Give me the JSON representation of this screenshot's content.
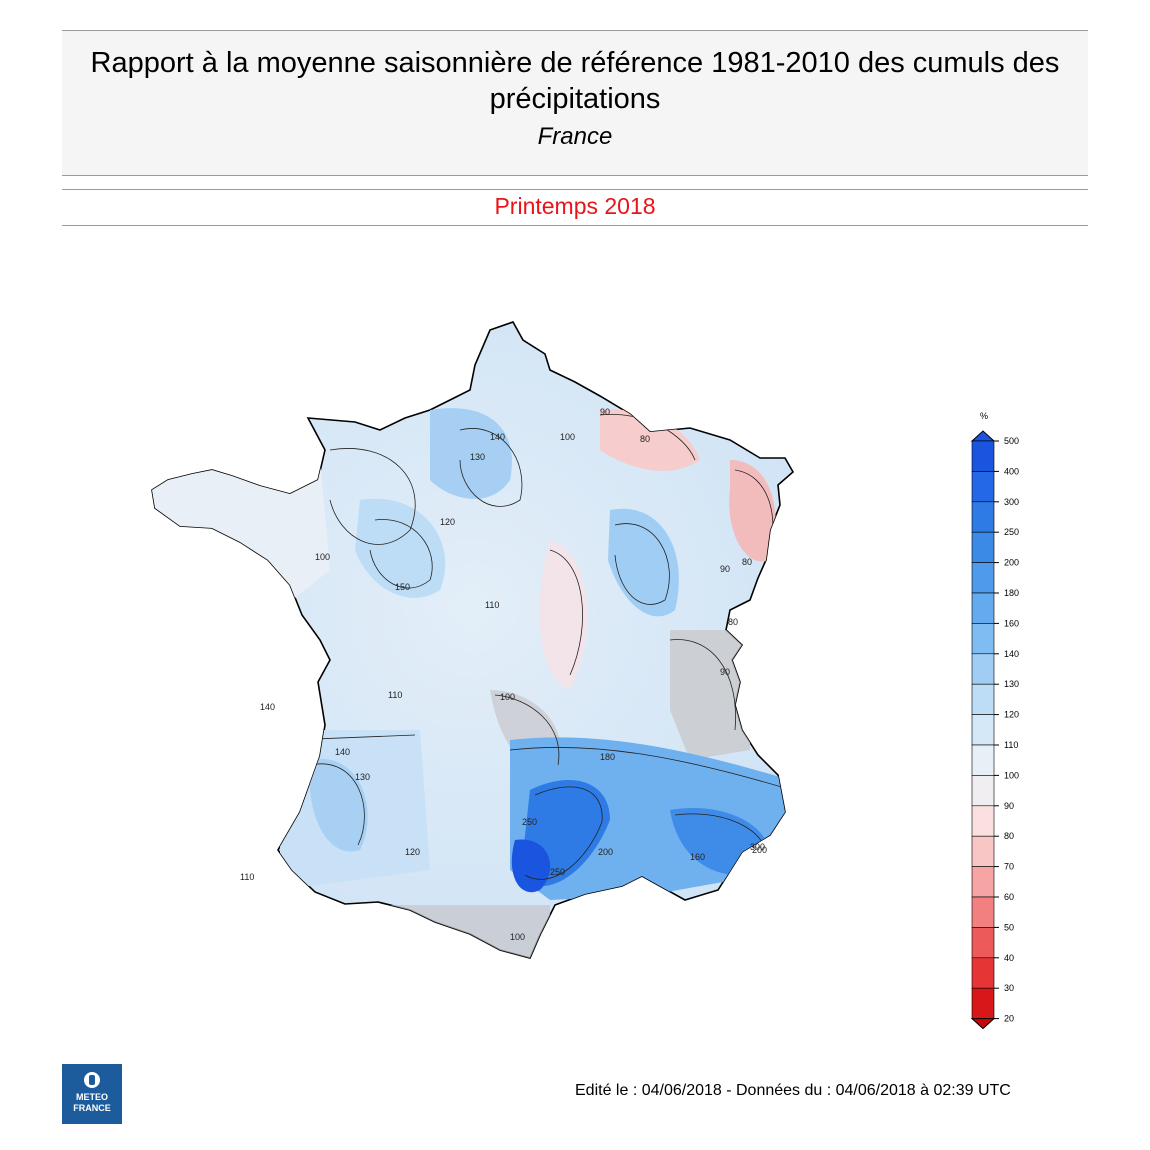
{
  "header": {
    "title": "Rapport à la moyenne saisonnière de référence 1981-2010 des cumuls des précipitations",
    "region": "France",
    "season": "Printemps 2018"
  },
  "legend": {
    "unit": "%",
    "levels": [
      "500",
      "400",
      "300",
      "250",
      "200",
      "180",
      "160",
      "140",
      "130",
      "120",
      "110",
      "100",
      "90",
      "80",
      "70",
      "60",
      "50",
      "40",
      "30",
      "20"
    ],
    "colors": [
      "#1a55e0",
      "#2468e8",
      "#2f7be6",
      "#3a8ae6",
      "#4f9aea",
      "#63abee",
      "#7ebcf1",
      "#a0cdf4",
      "#bddcf6",
      "#d4e8f7",
      "#e7f0f7",
      "#f0eef1",
      "#fbe0e0",
      "#f9c6c6",
      "#f6a4a4",
      "#f28080",
      "#ec5a5a",
      "#e53535",
      "#d81818",
      "#c20808"
    ]
  },
  "map": {
    "contour_labels": [
      "90",
      "80",
      "100",
      "120",
      "130",
      "140",
      "110",
      "100",
      "90",
      "80",
      "250",
      "200",
      "160",
      "180",
      "110",
      "120",
      "130",
      "140",
      "100",
      "90",
      "80",
      "250",
      "200",
      "100",
      "110",
      "140",
      "150",
      "300",
      "300"
    ]
  },
  "logo": {
    "line1": "METEO",
    "line2": "FRANCE"
  },
  "footer": {
    "text": "Edité le : 04/06/2018 - Données du : 04/06/2018 à 02:39 UTC"
  }
}
